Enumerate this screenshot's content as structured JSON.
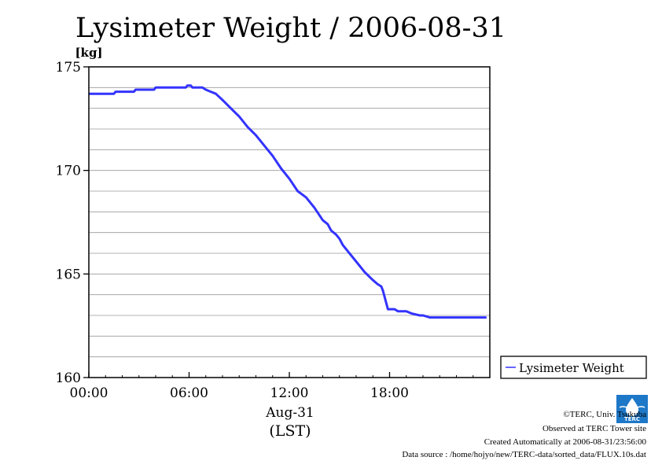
{
  "chart_data": {
    "type": "line",
    "title": "Lysimeter Weight / 2006-08-31",
    "ylabel": "[kg]",
    "xlabel": "Aug-31",
    "xlabel_sub": "(LST)",
    "ylim": [
      160,
      175
    ],
    "xlim_hours": [
      0,
      24
    ],
    "xticks": [
      {
        "hour": 0,
        "label": "00:00"
      },
      {
        "hour": 6,
        "label": "06:00"
      },
      {
        "hour": 12,
        "label": "12:00"
      },
      {
        "hour": 18,
        "label": "18:00"
      }
    ],
    "yticks": [
      {
        "value": 160,
        "label": "160"
      },
      {
        "value": 165,
        "label": "165"
      },
      {
        "value": 170,
        "label": "170"
      },
      {
        "value": 175,
        "label": "175"
      }
    ],
    "grid": true,
    "legend_position": "right-bottom",
    "series": [
      {
        "name": "Lysimeter Weight",
        "color": "#3333ff",
        "points": [
          [
            0.0,
            173.7
          ],
          [
            1.5,
            173.7
          ],
          [
            1.6,
            173.8
          ],
          [
            2.7,
            173.8
          ],
          [
            2.8,
            173.9
          ],
          [
            3.9,
            173.9
          ],
          [
            4.0,
            174.0
          ],
          [
            5.8,
            174.0
          ],
          [
            5.9,
            174.1
          ],
          [
            6.1,
            174.1
          ],
          [
            6.2,
            174.0
          ],
          [
            6.8,
            174.0
          ],
          [
            7.0,
            173.9
          ],
          [
            7.3,
            173.8
          ],
          [
            7.6,
            173.7
          ],
          [
            8.0,
            173.4
          ],
          [
            8.5,
            173.0
          ],
          [
            9.0,
            172.6
          ],
          [
            9.5,
            172.1
          ],
          [
            10.0,
            171.7
          ],
          [
            10.5,
            171.2
          ],
          [
            11.0,
            170.7
          ],
          [
            11.5,
            170.1
          ],
          [
            12.0,
            169.6
          ],
          [
            12.5,
            169.0
          ],
          [
            13.0,
            168.7
          ],
          [
            13.5,
            168.2
          ],
          [
            14.0,
            167.6
          ],
          [
            14.3,
            167.4
          ],
          [
            14.5,
            167.1
          ],
          [
            14.8,
            166.9
          ],
          [
            15.0,
            166.7
          ],
          [
            15.2,
            166.4
          ],
          [
            15.5,
            166.1
          ],
          [
            16.0,
            165.6
          ],
          [
            16.5,
            165.1
          ],
          [
            17.0,
            164.7
          ],
          [
            17.3,
            164.5
          ],
          [
            17.5,
            164.4
          ],
          [
            17.6,
            164.2
          ],
          [
            17.9,
            163.3
          ],
          [
            18.3,
            163.3
          ],
          [
            18.5,
            163.2
          ],
          [
            19.0,
            163.2
          ],
          [
            19.3,
            163.1
          ],
          [
            19.8,
            163.0
          ],
          [
            20.0,
            163.0
          ],
          [
            20.4,
            162.9
          ],
          [
            23.8,
            162.9
          ]
        ]
      }
    ]
  },
  "footer": {
    "copyright": "©TERC, Univ. Tsukuba",
    "observed": "Observed at TERC Tower site",
    "created": "Created Automatically at 2006-08-31/23:56:00",
    "source": "Data source : /home/hojyo/new/TERC-data/sorted_data/FLUX.10s.dat"
  },
  "logo": {
    "text": "TERC",
    "color": "#1e78c8"
  }
}
